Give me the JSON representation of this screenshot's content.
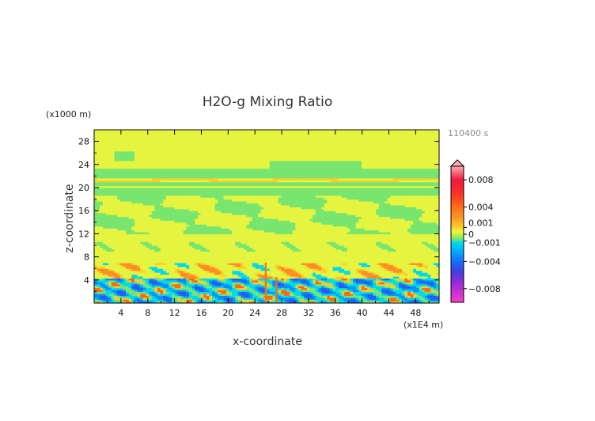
{
  "chart_data": {
    "type": "heatmap",
    "title": "H2O-g Mixing Ratio",
    "xlabel": "x-coordinate",
    "ylabel": "z-coordinate",
    "x_unit": "(x1E4 m)",
    "y_unit": "(x1000 m)",
    "time_label": "110400 s",
    "xlim": [
      0,
      51.5
    ],
    "ylim": [
      0,
      30
    ],
    "x_ticks": [
      4,
      8,
      12,
      16,
      20,
      24,
      28,
      32,
      36,
      40,
      44,
      48
    ],
    "y_ticks": [
      4,
      8,
      12,
      16,
      20,
      24,
      28
    ],
    "colorbar": {
      "range": [
        -0.01,
        0.01
      ],
      "tick_values": [
        0.008,
        0.004,
        0.001,
        0,
        -0.001,
        -0.004,
        -0.008
      ],
      "tick_labels": [
        "0.008",
        "0.004",
        "0.001",
        "0",
        "−0.001",
        "−0.004",
        "−0.008"
      ]
    },
    "field_summary": [
      {
        "z_range": [
          24,
          30
        ],
        "level": "yellow",
        "value": 0.0005
      },
      {
        "z_range": [
          19,
          23
        ],
        "level": "green",
        "value": -0.0005
      },
      {
        "z_range": [
          12,
          19
        ],
        "level": "mixed yellow/green",
        "value": 0.0
      },
      {
        "z_range": [
          6,
          12
        ],
        "level": "yellow",
        "value": 0.0005
      },
      {
        "z_range": [
          4,
          7
        ],
        "level": "orange plumes",
        "value": 0.003
      },
      {
        "z_range": [
          0,
          4
        ],
        "level": "cyan/blue with orange streaks",
        "value": -0.003
      }
    ]
  }
}
